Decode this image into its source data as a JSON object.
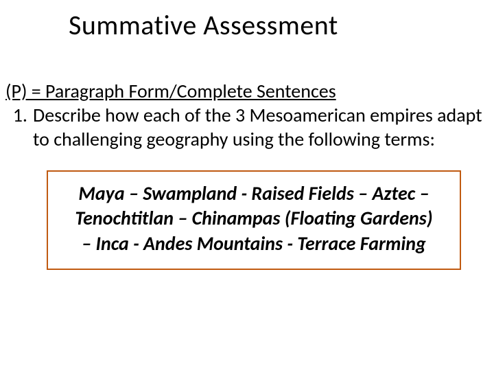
{
  "title": "Summative Assessment",
  "legend": "(P) = Paragraph Form/Complete Sentences",
  "question": {
    "number": "1.",
    "text": "Describe how each of the 3 Mesoamerican empires adapt to challenging geography using the following terms:"
  },
  "terms_box": {
    "text": "Maya – Swampland - Raised Fields – Aztec – Tenochtitlan – Chinampas (Floating Gardens) – Inca - Andes Mountains - Terrace Farming",
    "border_color": "#c05a11",
    "font_style": "italic",
    "font_weight": "bold"
  },
  "colors": {
    "background": "#ffffff",
    "text": "#000000",
    "box_border": "#c05a11"
  },
  "typography": {
    "title_fontsize": 40,
    "body_fontsize": 28,
    "font_family": "Calibri"
  }
}
